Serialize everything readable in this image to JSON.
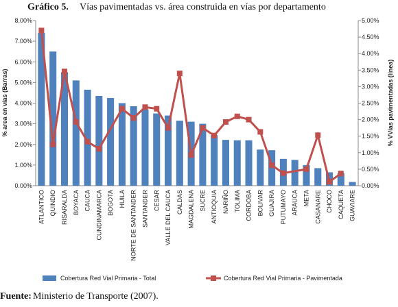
{
  "chart_data": {
    "type": "bar_line",
    "title_label": "Gráfico 5.",
    "title": "Vías pavimentadas vs. área construida en vías por departamento",
    "ylabel": "% area en vías (Barras)",
    "y2label": "% VVías pavimentadas (línea)",
    "source_label": "Fuente:",
    "source": "Ministerio de Transporte (2007).",
    "categories": [
      "ATLANTICO",
      "QUINDIO",
      "RISARALDA",
      "BOYACA",
      "CAUCA",
      "CUNDINAMARCA",
      "BOGOTA",
      "HUILA",
      "NORTE DE SANTANDER",
      "SANTANDER",
      "CESAR",
      "VALLE DEL CAUCA",
      "CALDAS",
      "MAGDALENA",
      "SUCRE",
      "ANTIOQUIA",
      "NARIÑO",
      "TOLIMA",
      "CORDOBA",
      "BOLIVAR",
      "GUAJIRA",
      "PUTUMAYO",
      "ARAUCA",
      "META",
      "CASANARE",
      "CHOCO",
      "CAQUETA",
      "GUAVIARE"
    ],
    "series": [
      {
        "name": "Cobertura Red Vial Primaria - Total",
        "type": "bar",
        "color": "#4f81bd",
        "values": [
          7.4,
          6.5,
          5.5,
          5.1,
          4.65,
          4.35,
          4.25,
          4.0,
          3.85,
          3.7,
          3.5,
          3.4,
          3.15,
          3.1,
          3.0,
          2.45,
          2.22,
          2.2,
          2.2,
          1.75,
          1.72,
          1.3,
          1.25,
          1.0,
          0.85,
          0.65,
          0.6,
          0.18
        ]
      },
      {
        "name": "Cobertura Red Vial Primaria - Pavimentada",
        "type": "line",
        "axis": "y2",
        "color": "#c0504d",
        "values": [
          4.7,
          1.25,
          3.46,
          1.93,
          1.33,
          1.12,
          null,
          2.33,
          2.05,
          2.38,
          2.33,
          1.75,
          3.4,
          0.93,
          1.75,
          1.52,
          1.93,
          2.1,
          2.0,
          1.63,
          0.62,
          0.38,
          null,
          0.5,
          1.53,
          0.12,
          0.37,
          null
        ]
      }
    ],
    "span_gaps": true,
    "ylim": [
      0,
      8
    ],
    "yticks": [
      {
        "value": 0,
        "label": "0.00%"
      },
      {
        "value": 1,
        "label": "1.00%"
      },
      {
        "value": 2,
        "label": "2.00%"
      },
      {
        "value": 3,
        "label": "3.00%"
      },
      {
        "value": 4,
        "label": "4.00%"
      },
      {
        "value": 5,
        "label": "5.00%"
      },
      {
        "value": 6,
        "label": "6.00%"
      },
      {
        "value": 7,
        "label": "7.00%"
      },
      {
        "value": 8,
        "label": "8.00%"
      }
    ],
    "y2lim": [
      0,
      5
    ],
    "y2ticks": [
      {
        "value": 0,
        "label": "0.00%"
      },
      {
        "value": 0.5,
        "label": "0.50%"
      },
      {
        "value": 1,
        "label": "1.00%"
      },
      {
        "value": 1.5,
        "label": "1.50%"
      },
      {
        "value": 2,
        "label": "2.00%"
      },
      {
        "value": 2.5,
        "label": "2.50%"
      },
      {
        "value": 3,
        "label": "3.00%"
      },
      {
        "value": 3.5,
        "label": "3.50%"
      },
      {
        "value": 4,
        "label": "4.00%"
      },
      {
        "value": 4.5,
        "label": "4.50%"
      },
      {
        "value": 5,
        "label": "5.00%"
      }
    ],
    "legend": "bottom"
  }
}
